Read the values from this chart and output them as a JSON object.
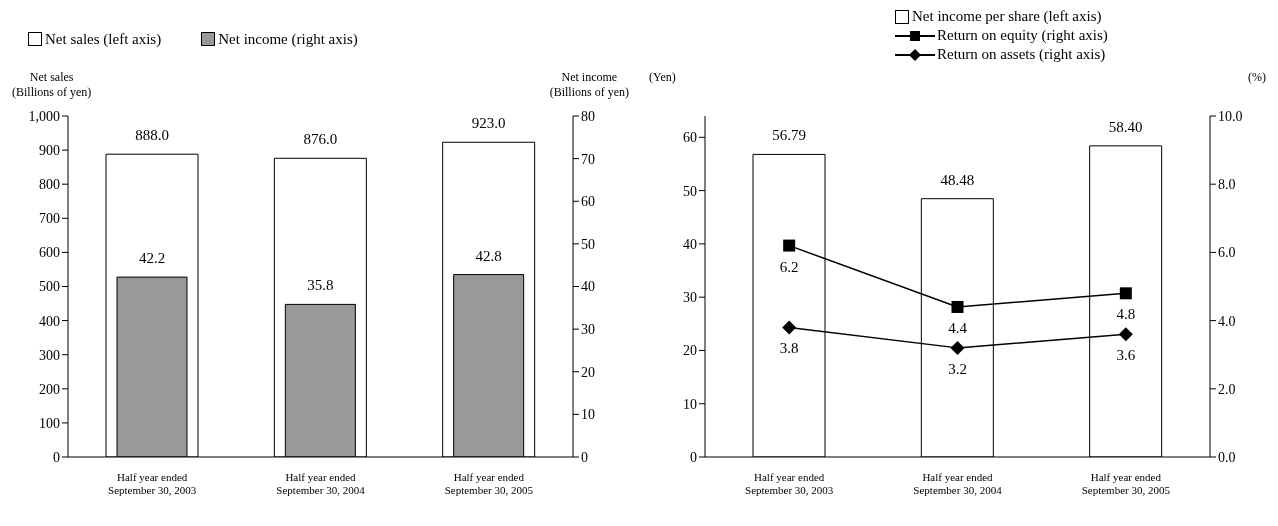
{
  "chart_data": [
    {
      "type": "bar",
      "categories": [
        "Half year ended\nSeptember 30, 2003",
        "Half year ended\nSeptember 30, 2004",
        "Half year ended\nSeptember 30, 2005"
      ],
      "series": [
        {
          "name": "Net sales (left axis)",
          "color": "#ffffff",
          "values": [
            888,
            876,
            923
          ],
          "value_labels": [
            "888.0",
            "876.0",
            "923.0"
          ]
        },
        {
          "name": "Net income (right axis)",
          "color": "#999999",
          "axis": "y2",
          "values": [
            42.2,
            35.8,
            42.8
          ],
          "value_labels": [
            "42.2",
            "35.8",
            "42.8"
          ]
        }
      ],
      "ylabel": "Net sales\n(Billions of yen)",
      "y2label": "Net income\n(Billions of yen)",
      "ylim": [
        0,
        1000
      ],
      "yticks": [
        0,
        100,
        200,
        300,
        400,
        500,
        600,
        700,
        800,
        900,
        {
          "value": 1000,
          "label": "1,000"
        }
      ],
      "y2lim": [
        0,
        80
      ],
      "y2ticks": [
        0,
        10,
        20,
        30,
        40,
        50,
        60,
        70,
        80
      ],
      "legend": "top"
    },
    {
      "type": "bar",
      "categories": [
        "Half year ended\nSeptember 30, 2003",
        "Half year ended\nSeptember 30, 2004",
        "Half year ended\nSeptember 30, 2005"
      ],
      "series": [
        {
          "name": "Net income per share (left axis)",
          "color": "#ffffff",
          "values": [
            56.79,
            48.48,
            58.4
          ],
          "value_labels": [
            "56.79",
            "48.48",
            "58.40"
          ]
        },
        {
          "name": "Return on equity (right axis)",
          "type": "line",
          "marker": "square",
          "color": "#000000",
          "axis": "y2",
          "values": [
            6.2,
            4.4,
            4.8
          ],
          "value_labels": [
            "6.2",
            "4.4",
            "4.8"
          ]
        },
        {
          "name": "Return on assets (right axis)",
          "type": "line",
          "marker": "diamond",
          "color": "#000000",
          "axis": "y2",
          "values": [
            3.8,
            3.2,
            3.6
          ],
          "value_labels": [
            "3.8",
            "3.2",
            "3.6"
          ]
        }
      ],
      "ylabel": "(Yen)",
      "y2label": "(%)",
      "ylim": [
        0,
        64
      ],
      "yticks": [
        0,
        10,
        20,
        30,
        40,
        50,
        60
      ],
      "y2lim": [
        0,
        10
      ],
      "y2ticks": [
        {
          "value": 0,
          "label": "0.0"
        },
        {
          "value": 2,
          "label": "2.0"
        },
        {
          "value": 4,
          "label": "4.0"
        },
        {
          "value": 6,
          "label": "6.0"
        },
        {
          "value": 8,
          "label": "8.0"
        },
        {
          "value": 10,
          "label": "10.0"
        }
      ],
      "legend": "top"
    }
  ]
}
